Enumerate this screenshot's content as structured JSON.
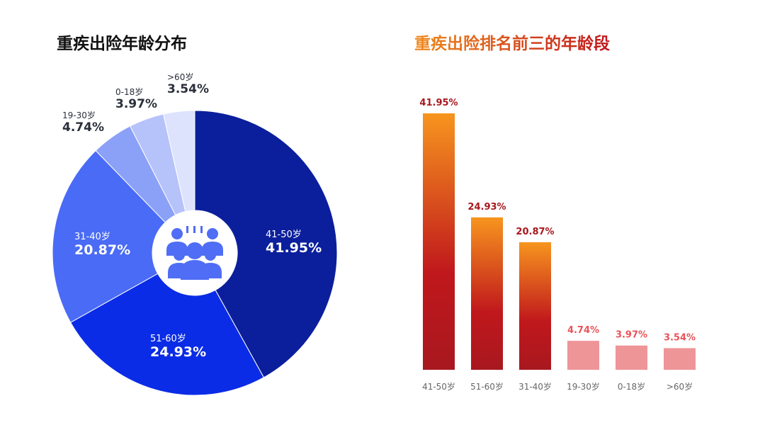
{
  "left_title": "重疾出险年龄分布",
  "right_title": "重疾出险排名前三的年龄段",
  "chart_data": [
    {
      "type": "pie",
      "title": "重疾出险年龄分布",
      "donut": true,
      "slices": [
        {
          "label": "41-50岁",
          "value": 41.95,
          "display": "41.95%",
          "color": "#0b1f9c"
        },
        {
          "label": "51-60岁",
          "value": 24.93,
          "display": "24.93%",
          "color": "#0b2ce6"
        },
        {
          "label": "31-40岁",
          "value": 20.87,
          "display": "20.87%",
          "color": "#4a6bf5"
        },
        {
          "label": "19-30岁",
          "value": 4.74,
          "display": "4.74%",
          "color": "#8ba1f8"
        },
        {
          "label": "0-18岁",
          "value": 3.97,
          "display": "3.97%",
          "color": "#b6c3fa"
        },
        {
          "label": ">60岁",
          "value": 3.54,
          "display": "3.54%",
          "color": "#dde3fd"
        }
      ],
      "center_icon": "group-of-people-icon"
    },
    {
      "type": "bar",
      "title": "重疾出险排名前三的年龄段",
      "categories": [
        "41-50岁",
        "51-60岁",
        "31-40岁",
        "19-30岁",
        "0-18岁",
        ">60岁"
      ],
      "values": [
        41.95,
        24.93,
        20.87,
        4.74,
        3.97,
        3.54
      ],
      "labels": [
        "41.95%",
        "24.93%",
        "20.87%",
        "4.74%",
        "3.97%",
        "3.54%"
      ],
      "highlight_top": 3,
      "colors": {
        "top_gradient_start": "#f7951e",
        "top_gradient_mid": "#c0181c",
        "top_gradient_end": "#a8181f",
        "top_label": "#a8181f",
        "other_bar": "#ee9598",
        "other_label": "#e8545a",
        "axis_label": "#666666"
      },
      "ylim": [
        0,
        42
      ]
    }
  ]
}
